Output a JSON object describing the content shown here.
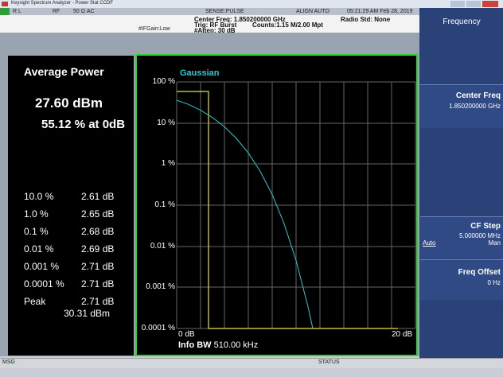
{
  "window": {
    "title": "Keysight Spectrum Analyzer - Power Stat CCDF"
  },
  "status_strip": {
    "rl": "R L",
    "input": "RF",
    "coupling": "50 Ω  AC",
    "sense": "SENSE:PULSE",
    "align": "ALIGN AUTO",
    "timestamp": "05:21:29 AM Feb 28, 2019"
  },
  "settings": {
    "center_freq": "Center Freq: 1.850200000 GHz",
    "trigger": "Trig: RF Burst",
    "atten": "#Atten: 30 dB",
    "counts": "Counts:1.15 M/2.00 Mpt",
    "radio_std": "Radio Std: None",
    "if_gain": "#IFGain:Low"
  },
  "results": {
    "heading": "Average Power",
    "average_power": "27.60 dBm",
    "percent_at_0db": "55.12 % at 0dB",
    "rows": [
      [
        "10.0 %",
        "2.61 dB"
      ],
      [
        "1.0 %",
        "2.65 dB"
      ],
      [
        "0.1 %",
        "2.68 dB"
      ],
      [
        "0.01 %",
        "2.69 dB"
      ],
      [
        "0.001 %",
        "2.71 dB"
      ],
      [
        "0.0001 %",
        "2.71 dB"
      ],
      [
        "Peak",
        "2.71 dB",
        "30.31 dBm"
      ]
    ]
  },
  "plot": {
    "reference_trace": "Gaussian",
    "y_labels": [
      "100 %",
      "10 %",
      "1 %",
      "0.1 %",
      "0.01 %",
      "0.001 %",
      "0.0001 %"
    ],
    "x_start": "0 dB",
    "x_stop": "20 dB",
    "info_bw_label": "Info BW",
    "info_bw_value": "510.00 kHz"
  },
  "softkeys": {
    "menu": "Frequency",
    "keys": [
      {
        "label": "Center Freq",
        "value": "1.850200000 GHz"
      },
      {
        "label": "CF Step",
        "value": "5.000000 MHz",
        "options": [
          "Auto",
          "Man"
        ]
      },
      {
        "label": "Freq Offset",
        "value": "0 Hz"
      }
    ]
  },
  "footer": {
    "msg": "MSG",
    "status": "STATUS"
  }
}
